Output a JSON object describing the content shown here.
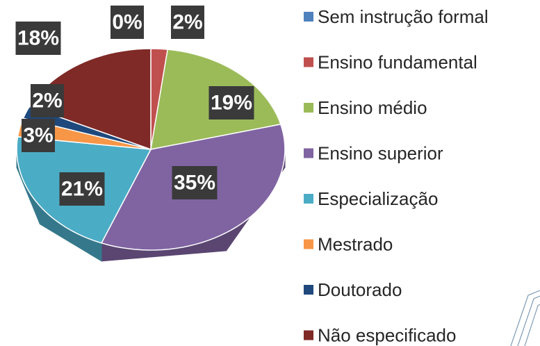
{
  "chart_data": {
    "type": "pie",
    "categories": [
      "Sem instrução formal",
      "Ensino fundamental",
      "Ensino médio",
      "Ensino superior",
      "Especialização",
      "Mestrado",
      "Doutorado",
      "Não especificado"
    ],
    "values": [
      0,
      2,
      19,
      35,
      21,
      3,
      2,
      18
    ],
    "value_labels": [
      "0%",
      "2%",
      "19%",
      "35%",
      "21%",
      "3%",
      "2%",
      "18%"
    ],
    "colors": [
      "#4f81bd",
      "#c0504d",
      "#9bbb59",
      "#8064a2",
      "#4bacc6",
      "#f79646",
      "#1f497d",
      "#7f2a26"
    ],
    "legend": "right"
  }
}
